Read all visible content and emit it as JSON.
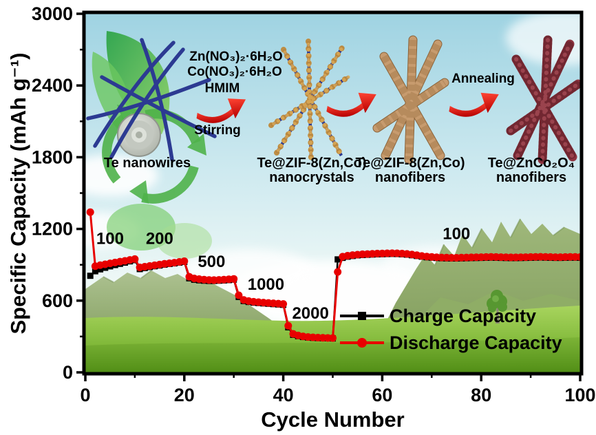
{
  "chart_data": {
    "type": "line",
    "xlabel": "Cycle Number",
    "ylabel": "Specific Capacity (mAh g⁻¹)",
    "xlim": [
      0,
      100
    ],
    "ylim": [
      0,
      3000
    ],
    "x_major_ticks": [
      0,
      20,
      40,
      60,
      80,
      100
    ],
    "x_minor_ticks": [
      10,
      30,
      50,
      70,
      90
    ],
    "y_major_ticks": [
      0,
      600,
      1200,
      1800,
      2400,
      3000
    ],
    "y_minor_ticks": [
      300,
      900,
      1500,
      2100,
      2700
    ],
    "x_start": 1,
    "x_step": 1,
    "legend_position": "inside lower right",
    "series": [
      {
        "name": "Charge Capacity",
        "color": "#000000",
        "marker": "square",
        "values": [
          808,
          846,
          862,
          875,
          887,
          898,
          908,
          918,
          929,
          939,
          864,
          873,
          881,
          888,
          894,
          901,
          907,
          912,
          918,
          924,
          787,
          775,
          770,
          767,
          765,
          765,
          767,
          769,
          772,
          776,
          631,
          597,
          589,
          583,
          580,
          577,
          574,
          571,
          568,
          565,
          377,
          314,
          303,
          296,
          292,
          289,
          287,
          286,
          285,
          284,
          945,
          958,
          968,
          974,
          979,
          982,
          984,
          986,
          988,
          989,
          990,
          991,
          990,
          988,
          985,
          980,
          974,
          968,
          963,
          960,
          957,
          955,
          954,
          953,
          953,
          954,
          955,
          956,
          957,
          958,
          959,
          960,
          959,
          958,
          957,
          956,
          956,
          957,
          958,
          959,
          960,
          961,
          960,
          959,
          958,
          958,
          959,
          960,
          960,
          959
        ]
      },
      {
        "name": "Discharge Capacity",
        "color": "#e80000",
        "marker": "circle",
        "values": [
          1340,
          888,
          897,
          904,
          912,
          919,
          926,
          933,
          941,
          948,
          878,
          884,
          890,
          896,
          902,
          908,
          913,
          918,
          924,
          930,
          800,
          786,
          780,
          776,
          773,
          772,
          774,
          776,
          779,
          782,
          645,
          606,
          597,
          591,
          587,
          584,
          581,
          578,
          575,
          572,
          390,
          322,
          309,
          301,
          296,
          293,
          291,
          289,
          288,
          287,
          840,
          968,
          976,
          981,
          985,
          988,
          990,
          992,
          994,
          995,
          996,
          997,
          996,
          994,
          991,
          986,
          980,
          974,
          969,
          966,
          963,
          961,
          960,
          959,
          959,
          960,
          961,
          962,
          963,
          964,
          965,
          966,
          965,
          964,
          963,
          962,
          962,
          963,
          964,
          965,
          966,
          967,
          966,
          965,
          964,
          964,
          965,
          966,
          966,
          965
        ]
      }
    ],
    "rate_annotations": [
      {
        "label": "100",
        "cycle": 5,
        "capacity": 1075
      },
      {
        "label": "200",
        "cycle": 15,
        "capacity": 1075
      },
      {
        "label": "500",
        "cycle": 25.5,
        "capacity": 880
      },
      {
        "label": "1000",
        "cycle": 36.5,
        "capacity": 690
      },
      {
        "label": "2000",
        "cycle": 45.5,
        "capacity": 450
      },
      {
        "label": "100",
        "cycle": 75,
        "capacity": 1115
      }
    ]
  },
  "inset": {
    "reagents_line1": "Zn(NO₃)₂·6H₂O",
    "reagents_line2": "Co(NO₃)₂·6H₂O",
    "reagents_line3": "HMIM",
    "step1_condition": "Stirring",
    "step3_condition": "Annealing",
    "label_te": "Te nanowires",
    "label_nc_1": "Te@ZIF-8(Zn,Co)",
    "label_nc_2": "nanocrystals",
    "label_nf_1": "Te@ZIF-8(Zn,Co)",
    "label_nf_2": "nanofibers",
    "label_ox_1": "Te@ZnCo₂O₄",
    "label_ox_2": "nanofibers"
  },
  "colors": {
    "charge": "#000000",
    "discharge": "#e80000",
    "wire_blue": "#2c3a92",
    "bead_gold": "#c08a3e",
    "fiber_tan": "#c79b6e",
    "oxide_red": "#8e3440",
    "arrow_red": "#dd1111",
    "axis": "#000000"
  }
}
